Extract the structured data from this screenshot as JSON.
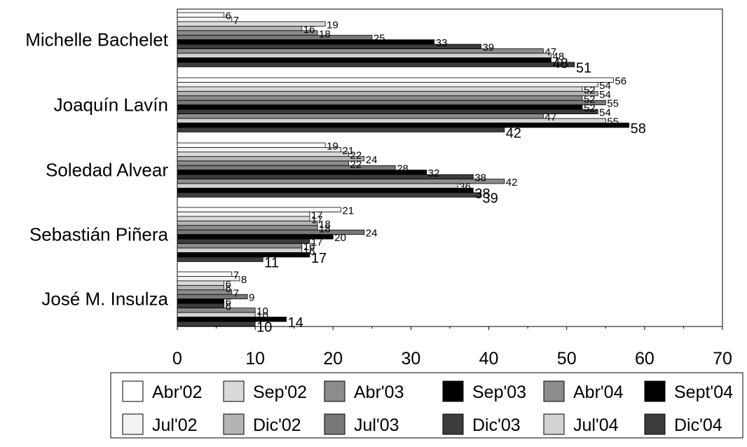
{
  "chart_data": {
    "type": "bar",
    "orientation": "horizontal",
    "categories": [
      "Michelle Bachelet",
      "Joaquín Lavín",
      "Soledad Alvear",
      "Sebastián Piñera",
      "José M. Insulza"
    ],
    "xlim": [
      0,
      70
    ],
    "x_ticks": [
      0,
      10,
      20,
      30,
      40,
      50,
      60,
      70
    ],
    "grid": false,
    "legend_position": "bottom",
    "series": [
      {
        "name": "Abr'02",
        "color": "#ffffff",
        "values": [
          6,
          56,
          19,
          21,
          7
        ]
      },
      {
        "name": "Jul'02",
        "color": "#f2f2f2",
        "values": [
          7,
          54,
          21,
          17,
          8
        ]
      },
      {
        "name": "Sep'02",
        "color": "#dadada",
        "values": [
          19,
          52,
          22,
          17,
          6
        ]
      },
      {
        "name": "Dic'02",
        "color": "#b4b4b4",
        "values": [
          16,
          54,
          24,
          18,
          6
        ]
      },
      {
        "name": "Abr'03",
        "color": "#8c8c8c",
        "values": [
          18,
          52,
          22,
          18,
          7
        ]
      },
      {
        "name": "Jul'03",
        "color": "#787878",
        "values": [
          25,
          55,
          28,
          24,
          9
        ]
      },
      {
        "name": "Sep'03",
        "color": "#000000",
        "values": [
          33,
          52,
          32,
          20,
          6
        ]
      },
      {
        "name": "Dic'03",
        "color": "#3c3c3c",
        "values": [
          39,
          54,
          38,
          17,
          6
        ]
      },
      {
        "name": "Abr'04",
        "color": "#8c8c8c",
        "values": [
          47,
          47,
          42,
          16,
          10
        ]
      },
      {
        "name": "Jul'04",
        "color": "#d2d2d2",
        "values": [
          48,
          55,
          36,
          16,
          10
        ]
      },
      {
        "name": "Sept'04",
        "color": "#000000",
        "values": [
          48,
          58,
          38,
          17,
          14
        ]
      },
      {
        "name": "Dic'04",
        "color": "#3c3c3c",
        "values": [
          51,
          42,
          39,
          11,
          10
        ]
      }
    ]
  }
}
